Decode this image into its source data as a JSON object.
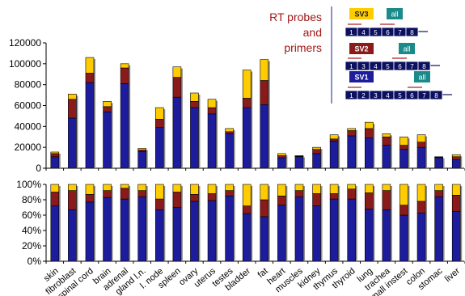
{
  "inset": {
    "title_line1": "RT probes",
    "title_line2": "and",
    "title_line3": "primers",
    "variants": [
      {
        "tag": "SV3",
        "tag_color": "#ffcc00",
        "tag_text_color": "#1a1a1a",
        "all_label": "all",
        "exons": [
          "1",
          "4",
          "5",
          "6",
          "7",
          "8"
        ]
      },
      {
        "tag": "SV2",
        "tag_color": "#8b1a1a",
        "tag_text_color": "#ffffff",
        "all_label": "all",
        "exons": [
          "1",
          "3",
          "4",
          "5",
          "6",
          "7",
          "8"
        ]
      },
      {
        "tag": "SV1",
        "tag_color": "#1c1c9c",
        "tag_text_color": "#ffffff",
        "all_label": "all",
        "exons": [
          "1",
          "2",
          "3",
          "4",
          "5",
          "6",
          "7",
          "8"
        ]
      }
    ],
    "all_color": "#1a8a8a",
    "exon_color": "#0c1060"
  },
  "colors": {
    "sv1": "#1c1c9c",
    "sv2": "#8b1a1a",
    "sv3": "#ffcc00",
    "shadow": "#8c8c8c"
  },
  "chart_data": [
    {
      "type": "bar",
      "stacked": true,
      "title": "",
      "xlabel": "",
      "ylabel": "",
      "ylim": [
        0,
        120000
      ],
      "yticks": [
        "0",
        "20000",
        "40000",
        "60000",
        "80000",
        "100000",
        "120000"
      ],
      "grid": false,
      "categories": [
        "skin",
        "fibroblast",
        "spinal cord",
        "brain",
        "adrenal",
        "gland l.n.",
        "l. node",
        "spleen",
        "ovary",
        "uterus",
        "testes",
        "bladder",
        "fat",
        "heart",
        "muscles",
        "kidney",
        "thymus",
        "thyroid",
        "lung",
        "trachea",
        "small instest",
        "colon",
        "stomac",
        "liver"
      ],
      "series": [
        {
          "color": "#1c1c9c",
          "values": [
            11000,
            48000,
            82000,
            54000,
            81000,
            16000,
            39000,
            68000,
            58000,
            52000,
            33000,
            58000,
            61000,
            10000,
            11000,
            14000,
            26000,
            31000,
            29000,
            22000,
            18000,
            20000,
            10000,
            8000
          ]
        },
        {
          "color": "#8b1a1a",
          "values": [
            3000,
            18000,
            9000,
            5000,
            15000,
            1500,
            8000,
            19000,
            6000,
            6000,
            2000,
            9000,
            23000,
            2000,
            500,
            4000,
            2000,
            5000,
            9000,
            8000,
            4000,
            5000,
            500,
            3000
          ]
        },
        {
          "color": "#ffcc00",
          "values": [
            1500,
            5000,
            15000,
            5000,
            4000,
            1500,
            11000,
            10000,
            8000,
            8000,
            3000,
            27000,
            20000,
            2000,
            500,
            2000,
            4000,
            2000,
            6000,
            3000,
            8000,
            7000,
            500,
            2000
          ]
        }
      ]
    },
    {
      "type": "bar",
      "stacked": true,
      "percent": true,
      "title": "",
      "xlabel": "",
      "ylabel": "",
      "ylim": [
        0,
        100
      ],
      "yticks": [
        "0%",
        "20%",
        "40%",
        "60%",
        "80%",
        "100%"
      ],
      "grid": false,
      "categories": [
        "skin",
        "fibroblast",
        "spinal cord",
        "brain",
        "adrenal",
        "gland l.n.",
        "l. node",
        "spleen",
        "ovary",
        "uterus",
        "testes",
        "bladder",
        "fat",
        "heart",
        "muscles",
        "kidney",
        "thymus",
        "thyroid",
        "lung",
        "trachea",
        "small instest",
        "colon",
        "stomac",
        "liver"
      ],
      "series": [
        {
          "color": "#1c1c9c",
          "values": [
            72,
            67,
            77,
            83,
            81,
            84,
            67,
            70,
            78,
            79,
            85,
            62,
            58,
            73,
            84,
            72,
            81,
            81,
            68,
            67,
            60,
            63,
            84,
            65
          ]
        },
        {
          "color": "#8b1a1a",
          "values": [
            18,
            25,
            10,
            9,
            14,
            8,
            14,
            20,
            9,
            9,
            7,
            10,
            22,
            12,
            8,
            16,
            7,
            13,
            21,
            25,
            13,
            15,
            8,
            21
          ]
        },
        {
          "color": "#ffcc00",
          "values": [
            10,
            8,
            13,
            8,
            5,
            8,
            19,
            10,
            13,
            12,
            8,
            28,
            20,
            15,
            8,
            12,
            12,
            6,
            11,
            8,
            27,
            22,
            8,
            14
          ]
        }
      ]
    }
  ]
}
